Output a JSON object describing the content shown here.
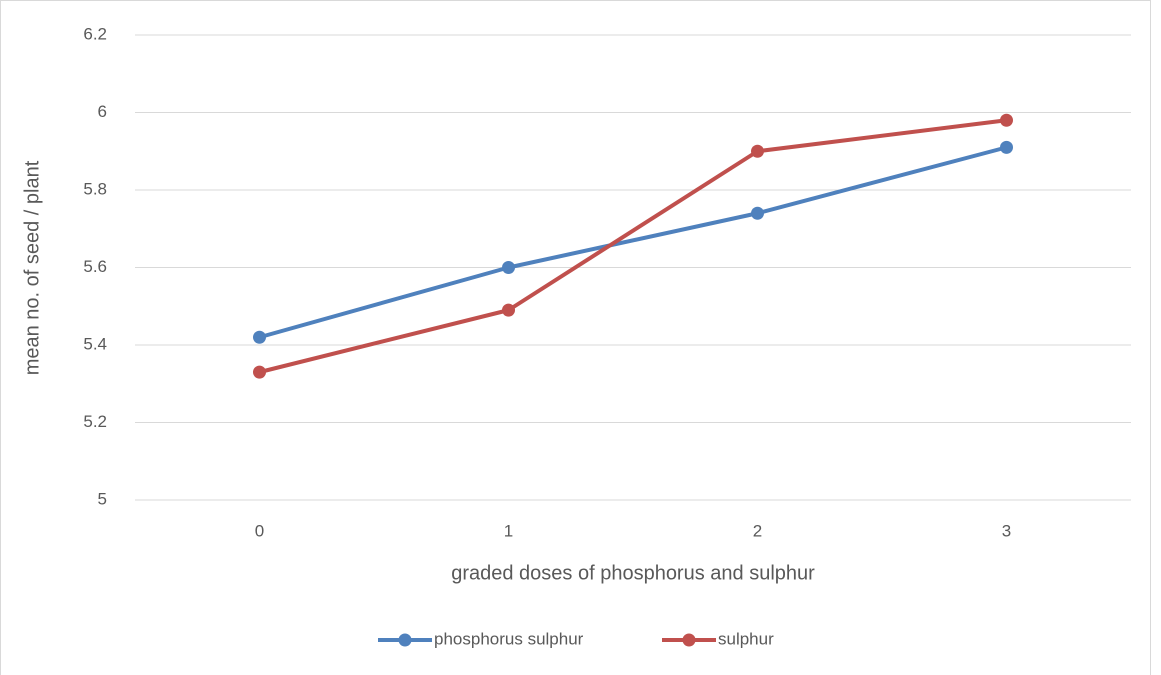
{
  "chart_data": {
    "type": "line",
    "x_label": "graded doses of phosphorus and sulphur",
    "y_label": "mean no. of seed / plant",
    "categories": [
      "0",
      "1",
      "2",
      "3"
    ],
    "series": [
      {
        "name": "phosphorus sulphur",
        "color": "#4f81bd",
        "values": [
          5.42,
          5.6,
          5.74,
          5.91
        ]
      },
      {
        "name": "sulphur",
        "color": "#c0504d",
        "values": [
          5.33,
          5.49,
          5.9,
          5.98
        ]
      }
    ],
    "ylim": [
      5,
      6.2
    ],
    "yticks": [
      5,
      5.2,
      5.4,
      5.6,
      5.8,
      6,
      6.2
    ],
    "grid": true,
    "legend": "bottom"
  }
}
